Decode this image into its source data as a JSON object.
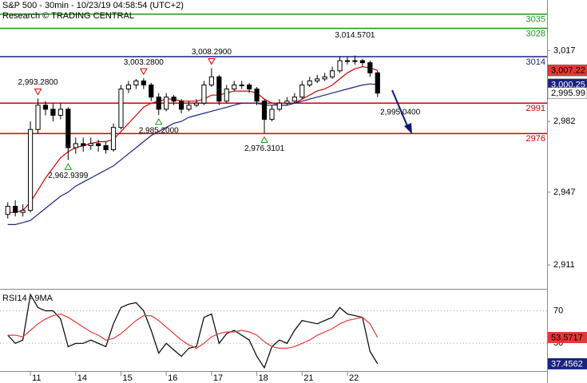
{
  "chart_data": [
    {
      "type": "candlestick",
      "title": "S&P 500 - 30min - 10/23/19 04:58:54 (UTC+2)",
      "subtitle": "Research © TRADING CENTRAL",
      "xlim": [
        0,
        50
      ],
      "ylim": [
        2900,
        3042
      ],
      "yticks": [
        {
          "value": 3017,
          "label": "3,017"
        },
        {
          "value": 2982,
          "label": "2,982"
        },
        {
          "value": 2947,
          "label": "2,947"
        },
        {
          "value": 2911,
          "label": "2,911"
        }
      ],
      "ohlc": [
        [
          2936,
          2942,
          2934,
          2940
        ],
        [
          2940,
          2943,
          2935,
          2937
        ],
        [
          2937,
          2941,
          2935,
          2938
        ],
        [
          2938,
          2982,
          2937,
          2978
        ],
        [
          2978,
          2993.28,
          2976,
          2990
        ],
        [
          2990,
          2992,
          2985,
          2988
        ],
        [
          2988,
          2991,
          2982,
          2985
        ],
        [
          2985,
          2991,
          2983,
          2988
        ],
        [
          2988,
          2989,
          2962.94,
          2969
        ],
        [
          2969,
          2974,
          2966,
          2971
        ],
        [
          2971,
          2974,
          2967,
          2970
        ],
        [
          2970,
          2974,
          2968,
          2971
        ],
        [
          2971,
          2973,
          2967,
          2970
        ],
        [
          2970,
          2972,
          2966,
          2968
        ],
        [
          2968,
          2981,
          2967,
          2979
        ],
        [
          2979,
          3000,
          2978,
          2998
        ],
        [
          2998,
          3002,
          2996,
          3000
        ],
        [
          3000,
          3003,
          2998,
          3002
        ],
        [
          3002,
          3003.28,
          2998,
          3000
        ],
        [
          3000,
          3001,
          2992,
          2994
        ],
        [
          2994,
          2996,
          2985.2,
          2988
        ],
        [
          2988,
          2996,
          2987,
          2994
        ],
        [
          2994,
          2995,
          2990,
          2992
        ],
        [
          2992,
          2993,
          2986,
          2988
        ],
        [
          2988,
          2992,
          2987,
          2990
        ],
        [
          2990,
          2993,
          2989,
          2991
        ],
        [
          2991,
          3002,
          2990,
          3000
        ],
        [
          3000,
          3008.29,
          2999,
          3004
        ],
        [
          3004,
          3005,
          2990,
          2992
        ],
        [
          2992,
          3000,
          2991,
          2998
        ],
        [
          2998,
          3002,
          2997,
          3000
        ],
        [
          3000,
          3002,
          2998,
          3000
        ],
        [
          3000,
          3001,
          2996,
          2998
        ],
        [
          2998,
          2999,
          2990,
          2992
        ],
        [
          2992,
          2993,
          2976.31,
          2983
        ],
        [
          2983,
          2990,
          2982,
          2988
        ],
        [
          2988,
          2993,
          2987,
          2991
        ],
        [
          2991,
          2994,
          2990,
          2992
        ],
        [
          2992,
          2996,
          2991,
          2994
        ],
        [
          2994,
          3002,
          2993,
          3000
        ],
        [
          3000,
          3004,
          2999,
          3002
        ],
        [
          3002,
          3005,
          3001,
          3003
        ],
        [
          3003,
          3006,
          3002,
          3004
        ],
        [
          3004,
          3009,
          3003,
          3007
        ],
        [
          3007,
          3014,
          3006,
          3012
        ],
        [
          3012,
          3014,
          3010,
          3012
        ],
        [
          3012,
          3014.57,
          3010,
          3012
        ],
        [
          3012,
          3013,
          3009,
          3011
        ],
        [
          3011,
          3012,
          3004,
          3006
        ],
        [
          3006,
          3007,
          2994,
          2995.99
        ]
      ],
      "series": [
        {
          "color": "#d40000",
          "values": [
            2937,
            2937,
            2938,
            2942,
            2948,
            2954,
            2959,
            2964,
            2967,
            2969,
            2970,
            2971,
            2972,
            2972,
            2973,
            2977,
            2981,
            2985,
            2989,
            2991,
            2992,
            2993,
            2993,
            2992,
            2992,
            2992,
            2993,
            2995,
            2995,
            2996,
            2997,
            2997,
            2997,
            2996,
            2993,
            2991,
            2990,
            2990,
            2991,
            2993,
            2995,
            2997,
            2998,
            3000,
            3003,
            3006,
            3008,
            3009,
            3008.5,
            3007.22
          ]
        },
        {
          "color": "#1a237e",
          "values": [
            2931,
            2931,
            2932,
            2933,
            2936,
            2939,
            2942,
            2945,
            2947,
            2950,
            2952,
            2954,
            2956,
            2958,
            2960,
            2963,
            2966,
            2969,
            2972,
            2975,
            2977,
            2979,
            2981,
            2982,
            2984,
            2985,
            2986,
            2987,
            2988,
            2989,
            2990,
            2991,
            2991,
            2991,
            2990,
            2990,
            2990,
            2990,
            2991,
            2992,
            2993,
            2994,
            2995,
            2996,
            2997,
            2998,
            2999,
            3000,
            3000.5,
            3000.25
          ]
        }
      ],
      "levels": [
        {
          "value": 3035,
          "color": "#1a9a1a"
        },
        {
          "value": 3028,
          "color": "#1a9a1a"
        },
        {
          "value": 3014,
          "color": "#1a237e"
        },
        {
          "value": 2991,
          "color": "#d40000"
        },
        {
          "value": 2976,
          "color": "#d40000"
        }
      ],
      "price_tags": [
        {
          "value": 3007.22,
          "label": "3,007.22",
          "color": "#e53935"
        },
        {
          "value": 3000.25,
          "label": "3,000.25",
          "color": "#1a237e"
        },
        {
          "value": 2995.99,
          "label": "2,995.99",
          "color": "#ffffff"
        }
      ],
      "annotations": [
        {
          "x": 4.5,
          "value": 2993.28,
          "label": "2,993.2800",
          "marker": "down"
        },
        {
          "x": 8.5,
          "value": 2962.94,
          "label": "2,962.9399",
          "marker": "up"
        },
        {
          "x": 18.5,
          "value": 3003.28,
          "label": "3,003.2800",
          "marker": "down"
        },
        {
          "x": 20.5,
          "value": 2985.2,
          "label": "2,985.2000",
          "marker": "up"
        },
        {
          "x": 27.5,
          "value": 3008.29,
          "label": "3,008.2900",
          "marker": "down"
        },
        {
          "x": 34.5,
          "value": 2976.31,
          "label": "2,976.3101",
          "marker": "up"
        },
        {
          "x": 46.5,
          "value": 3014.57,
          "label": "3,014.5701",
          "marker": "none"
        },
        {
          "x": 52.5,
          "value": 2995.04,
          "label": "2,995.0400",
          "marker": "target"
        }
      ]
    },
    {
      "type": "line",
      "title": "RSI14 - 9MA",
      "xlim": [
        0,
        50
      ],
      "ylim": [
        33,
        82
      ],
      "yticks": [
        70,
        50
      ],
      "xticks": [
        {
          "value": 3.5,
          "label": "11"
        },
        {
          "value": 9.5,
          "label": "14"
        },
        {
          "value": 15.5,
          "label": "15"
        },
        {
          "value": 21.5,
          "label": "16"
        },
        {
          "value": 27.5,
          "label": "17"
        },
        {
          "value": 33.5,
          "label": "18"
        },
        {
          "value": 39.5,
          "label": "21"
        },
        {
          "value": 45.5,
          "label": "22"
        }
      ],
      "series": [
        {
          "color": "#000000",
          "values": [
            55,
            50,
            52,
            80,
            72,
            70,
            70,
            65,
            48,
            50,
            50,
            52,
            50,
            48,
            62,
            72,
            74,
            75,
            70,
            58,
            44,
            50,
            46,
            42,
            47,
            48,
            66,
            68,
            50,
            56,
            58,
            55,
            52,
            42,
            35,
            48,
            52,
            50,
            58,
            64,
            63,
            62,
            64,
            66,
            72,
            68,
            67,
            66,
            45,
            37.4562
          ]
        },
        {
          "color": "#e53935",
          "values": [
            55,
            55,
            54,
            58,
            62,
            65,
            67,
            68,
            66,
            63,
            60,
            57,
            55,
            52,
            53,
            56,
            60,
            64,
            67,
            67,
            64,
            60,
            56,
            52,
            49,
            47,
            50,
            54,
            56,
            57,
            57,
            58,
            57,
            55,
            51,
            48,
            47,
            47,
            48,
            50,
            52,
            55,
            57,
            59,
            62,
            64,
            65,
            66,
            62,
            53.5717
          ]
        }
      ]
    }
  ]
}
